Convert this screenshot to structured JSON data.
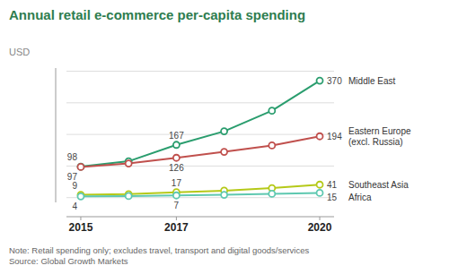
{
  "chart_data": {
    "type": "line",
    "title": "Annual retail e-commerce per-capita spending",
    "subtitle": "USD",
    "note": "Note: Retail spending only; excludes travel, transport and digital goods/services\nSource: Global Growth Markets",
    "x": [
      2015,
      2016,
      2017,
      2018,
      2019,
      2020
    ],
    "series": [
      {
        "name": "Middle East",
        "color": "#2a9d6e",
        "values": [
          98,
          115,
          167,
          210,
          275,
          370
        ]
      },
      {
        "name": "Eastern Europe\n(excl. Russia)",
        "color": "#c0504d",
        "values": [
          97,
          108,
          126,
          145,
          165,
          194
        ]
      },
      {
        "name": "Southeast Asia",
        "color": "#b5c918",
        "values": [
          9,
          11,
          17,
          22,
          30,
          41
        ]
      },
      {
        "name": "Africa",
        "color": "#5ec8b0",
        "values": [
          4,
          5,
          7,
          9,
          12,
          15
        ]
      }
    ],
    "xlim": [
      2014.7,
      2020.3
    ],
    "xticks": [
      2015,
      2017,
      2020
    ],
    "ylim": [
      -15,
      410
    ],
    "yticks": [
      0,
      100,
      200,
      300,
      400
    ],
    "grid": true,
    "tick_labels": "x",
    "marker": "circle",
    "annotations": [
      {
        "x": 2015,
        "y": 98,
        "text": "98"
      },
      {
        "x": 2015,
        "y": 97,
        "text": "97"
      },
      {
        "x": 2015,
        "y": 9,
        "text": "9"
      },
      {
        "x": 2015,
        "y": 4,
        "text": "4"
      },
      {
        "x": 2017,
        "y": 167,
        "text": "167"
      },
      {
        "x": 2017,
        "y": 126,
        "text": "126"
      },
      {
        "x": 2017,
        "y": 17,
        "text": "17"
      },
      {
        "x": 2017,
        "y": 7,
        "text": "7"
      },
      {
        "x": 2020,
        "y": 370,
        "text": "370"
      },
      {
        "x": 2020,
        "y": 194,
        "text": "194"
      },
      {
        "x": 2020,
        "y": 41,
        "text": "41"
      },
      {
        "x": 2020,
        "y": 15,
        "text": "15"
      }
    ]
  }
}
